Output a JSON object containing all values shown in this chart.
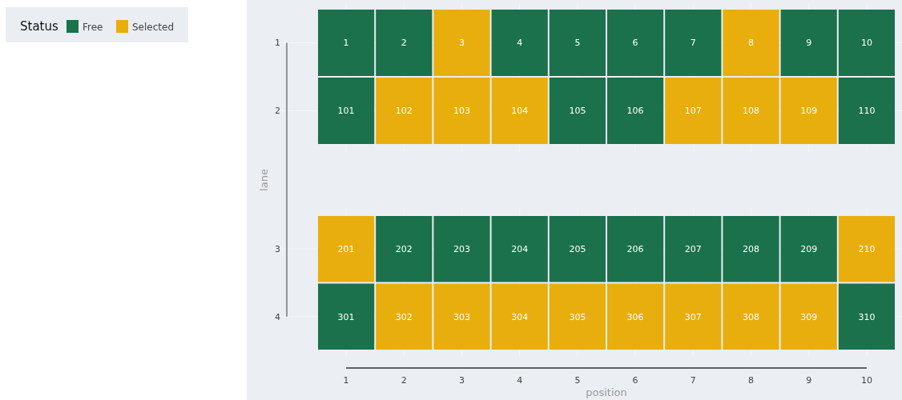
{
  "chart_data": [
    {
      "type": "other",
      "title": "Status",
      "categories": [
        "Free",
        "Selected"
      ],
      "colors": [
        "#1b714c",
        "#e8ae0e"
      ]
    },
    {
      "type": "heatmap",
      "data_labels": true,
      "ylabel": "lane",
      "grid": true,
      "tick_labels": "y",
      "categories": [
        "1",
        "2",
        "3",
        "4",
        "5",
        "6",
        "7",
        "8",
        "9",
        "10"
      ],
      "y_categories": [
        "1",
        "2"
      ],
      "cells": [
        [
          1,
          2,
          3,
          4,
          5,
          6,
          7,
          8,
          9,
          10
        ],
        [
          101,
          102,
          103,
          104,
          105,
          106,
          107,
          108,
          109,
          110
        ]
      ],
      "colors": [
        [
          "#1b714c",
          "#1b714c",
          "#e8ae0e",
          "#1b714c",
          "#1b714c",
          "#1b714c",
          "#1b714c",
          "#e8ae0e",
          "#1b714c",
          "#1b714c"
        ],
        [
          "#1b714c",
          "#e8ae0e",
          "#e8ae0e",
          "#e8ae0e",
          "#1b714c",
          "#1b714c",
          "#e8ae0e",
          "#e8ae0e",
          "#e8ae0e",
          "#1b714c"
        ]
      ]
    },
    {
      "type": "heatmap",
      "data_labels": true,
      "xlabel": "position",
      "grid": true,
      "categories": [
        "1",
        "2",
        "3",
        "4",
        "5",
        "6",
        "7",
        "8",
        "9",
        "10"
      ],
      "y_categories": [
        "3",
        "4"
      ],
      "cells": [
        [
          201,
          202,
          203,
          204,
          205,
          206,
          207,
          208,
          209,
          210
        ],
        [
          301,
          302,
          303,
          304,
          305,
          306,
          307,
          308,
          309,
          310
        ]
      ],
      "colors": [
        [
          "#e8ae0e",
          "#1b714c",
          "#1b714c",
          "#1b714c",
          "#1b714c",
          "#1b714c",
          "#1b714c",
          "#1b714c",
          "#1b714c",
          "#e8ae0e"
        ],
        [
          "#1b714c",
          "#e8ae0e",
          "#e8ae0e",
          "#e8ae0e",
          "#e8ae0e",
          "#e8ae0e",
          "#e8ae0e",
          "#e8ae0e",
          "#e8ae0e",
          "#1b714c"
        ]
      ]
    }
  ]
}
